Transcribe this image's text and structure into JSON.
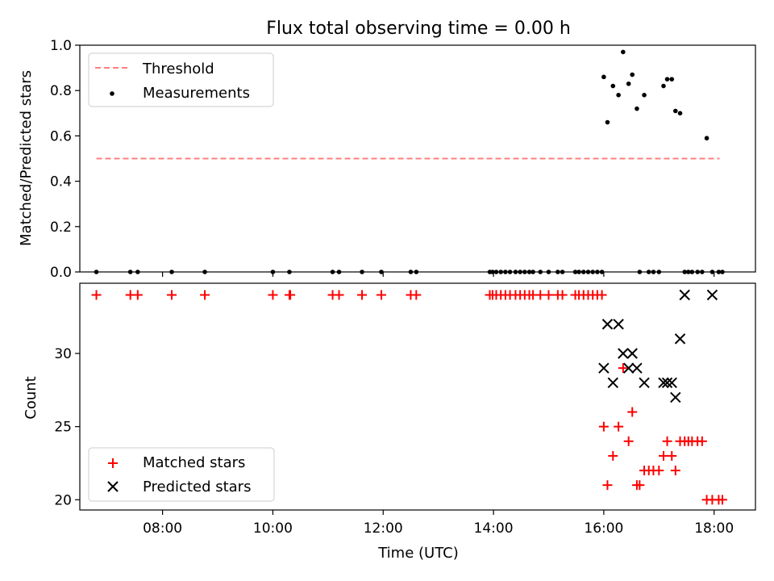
{
  "chart_data": [
    {
      "type": "scatter",
      "title": "Flux total observing time = 0.00 h",
      "xlabel": "",
      "ylabel": "Matched/Predicted stars",
      "ylim": [
        0.0,
        1.0
      ],
      "xlim": [
        "06:30",
        "18:45"
      ],
      "yticks": [
        "0.0",
        "0.2",
        "0.4",
        "0.6",
        "0.8",
        "1.0"
      ],
      "xticks_visible": false,
      "legend": {
        "placement": "upper left",
        "entries": [
          "Threshold",
          "Measurements"
        ]
      },
      "colors": {
        "threshold": "#ff7f7f",
        "measurements": "#000000"
      },
      "series": [
        {
          "name": "Threshold",
          "kind": "dashed-line",
          "x": [
            "06:48",
            "18:06"
          ],
          "y": [
            0.5,
            0.5
          ]
        },
        {
          "name": "Measurements",
          "kind": "points",
          "x": [
            "06:48",
            "07:25",
            "07:33",
            "08:10",
            "08:46",
            "10:00",
            "10:18",
            "11:05",
            "11:12",
            "11:37",
            "11:58",
            "12:30",
            "12:36",
            "13:56",
            "13:59",
            "14:03",
            "14:08",
            "14:13",
            "14:18",
            "14:24",
            "14:29",
            "14:34",
            "14:39",
            "14:43",
            "14:51",
            "15:00",
            "15:10",
            "15:15",
            "15:29",
            "15:33",
            "15:38",
            "15:43",
            "15:48",
            "15:53",
            "15:58",
            "16:00",
            "16:04",
            "16:10",
            "16:16",
            "16:21",
            "16:27",
            "16:31",
            "16:36",
            "16:39",
            "16:44",
            "16:49",
            "16:54",
            "17:00",
            "17:05",
            "17:09",
            "17:14",
            "17:18",
            "17:23",
            "17:28",
            "17:32",
            "17:36",
            "17:42",
            "17:47",
            "17:52",
            "17:58",
            "18:05",
            "18:09"
          ],
          "y": [
            0,
            0,
            0,
            0,
            0,
            0,
            0,
            0,
            0,
            0,
            0,
            0,
            0,
            0,
            0,
            0,
            0,
            0,
            0,
            0,
            0,
            0,
            0,
            0,
            0,
            0,
            0,
            0,
            0,
            0,
            0,
            0,
            0,
            0,
            0,
            0.86,
            0.66,
            0.82,
            0.78,
            0.97,
            0.83,
            0.87,
            0.72,
            0,
            0.78,
            0,
            0,
            0,
            0.82,
            0.85,
            0.85,
            0.71,
            0.7,
            0,
            0,
            0,
            0,
            0,
            0.59,
            0,
            0,
            0
          ]
        }
      ]
    },
    {
      "type": "scatter",
      "title": "",
      "xlabel": "Time (UTC)",
      "ylabel": "Count",
      "ylim": [
        19.3,
        34.8
      ],
      "xlim": [
        "06:30",
        "18:45"
      ],
      "yticks": [
        "20",
        "25",
        "30"
      ],
      "xticks": [
        "08:00",
        "10:00",
        "12:00",
        "14:00",
        "16:00",
        "18:00"
      ],
      "legend": {
        "placement": "lower left",
        "entries": [
          "Matched stars",
          "Predicted stars"
        ]
      },
      "colors": {
        "matched": "#ff0000",
        "predicted": "#000000"
      },
      "series": [
        {
          "name": "Matched stars",
          "marker": "+",
          "x": [
            "06:48",
            "07:25",
            "07:33",
            "08:10",
            "08:46",
            "10:00",
            "10:18",
            "10:19",
            "11:05",
            "11:12",
            "11:37",
            "11:58",
            "12:30",
            "12:36",
            "13:56",
            "13:59",
            "14:03",
            "14:08",
            "14:13",
            "14:18",
            "14:24",
            "14:29",
            "14:34",
            "14:39",
            "14:43",
            "14:51",
            "15:00",
            "15:10",
            "15:15",
            "15:29",
            "15:33",
            "15:38",
            "15:43",
            "15:48",
            "15:53",
            "15:58",
            "16:00",
            "16:04",
            "16:10",
            "16:16",
            "16:21",
            "16:27",
            "16:31",
            "16:36",
            "16:39",
            "16:44",
            "16:49",
            "16:54",
            "17:00",
            "17:05",
            "17:09",
            "17:14",
            "17:18",
            "17:23",
            "17:28",
            "17:32",
            "17:36",
            "17:42",
            "17:47",
            "17:52",
            "17:58",
            "18:05",
            "18:09"
          ],
          "y": [
            34,
            34,
            34,
            34,
            34,
            34,
            34,
            34,
            34,
            34,
            34,
            34,
            34,
            34,
            34,
            34,
            34,
            34,
            34,
            34,
            34,
            34,
            34,
            34,
            34,
            34,
            34,
            34,
            34,
            34,
            34,
            34,
            34,
            34,
            34,
            34,
            25,
            21,
            23,
            25,
            29,
            24,
            26,
            21,
            21,
            22,
            22,
            22,
            22,
            23,
            24,
            23,
            22,
            24,
            24,
            24,
            24,
            24,
            24,
            20,
            20,
            20,
            20
          ]
        },
        {
          "name": "Predicted stars",
          "marker": "x",
          "x": [
            "16:00",
            "16:04",
            "16:10",
            "16:16",
            "16:21",
            "16:27",
            "16:31",
            "16:36",
            "16:44",
            "17:05",
            "17:09",
            "17:14",
            "17:18",
            "17:23",
            "17:28",
            "17:58"
          ],
          "y": [
            29,
            32,
            28,
            32,
            30,
            29,
            30,
            29,
            28,
            28,
            28,
            28,
            27,
            31,
            34,
            34
          ]
        }
      ]
    }
  ]
}
